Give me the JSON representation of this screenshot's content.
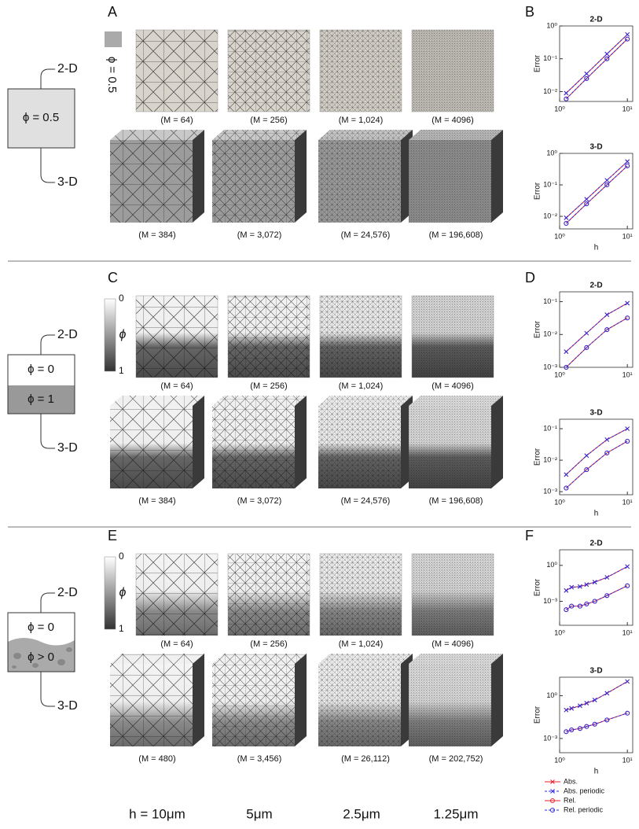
{
  "figure": {
    "rows": [
      {
        "letter": "A",
        "chart_letter": "B",
        "dim_2d": "2-D",
        "dim_3d": "3-D",
        "phase_labels": [
          "ϕ = 0.5"
        ],
        "colorbar_labels": [
          "ϕ = 0.5"
        ],
        "mesh_2d": [
          "(M = 64)",
          "(M = 256)",
          "(M = 1,024)",
          "(M = 4096)"
        ],
        "mesh_3d": [
          "(M = 384)",
          "(M = 3,072)",
          "(M = 24,576)",
          "(M = 196,608)"
        ]
      },
      {
        "letter": "C",
        "chart_letter": "D",
        "dim_2d": "2-D",
        "dim_3d": "3-D",
        "phase_labels": [
          "ϕ = 0",
          "ϕ = 1"
        ],
        "colorbar_labels": [
          "0",
          "ϕ",
          "1"
        ],
        "mesh_2d": [
          "(M = 64)",
          "(M = 256)",
          "(M = 1,024)",
          "(M = 4096)"
        ],
        "mesh_3d": [
          "(M = 384)",
          "(M = 3,072)",
          "(M = 24,576)",
          "(M = 196,608)"
        ]
      },
      {
        "letter": "E",
        "chart_letter": "F",
        "dim_2d": "2-D",
        "dim_3d": "3-D",
        "phase_labels": [
          "ϕ = 0",
          "ϕ > 0"
        ],
        "colorbar_labels": [
          "0",
          "ϕ",
          "1"
        ],
        "mesh_2d": [
          "(M = 64)",
          "(M = 256)",
          "(M = 1,024)",
          "(M = 4096)"
        ],
        "mesh_3d": [
          "(M = 480)",
          "(M = 3,456)",
          "(M = 26,112)",
          "(M = 202,752)"
        ]
      }
    ],
    "h_labels": [
      "h = 10μm",
      "5μm",
      "2.5μm",
      "1.25μm"
    ]
  },
  "chart_data": [
    {
      "type": "line",
      "title": "2-D",
      "ylabel": "Error",
      "log_x": true,
      "log_y": true,
      "x": [
        1.25,
        2.5,
        5,
        10
      ],
      "xlim": [
        1,
        12
      ],
      "xticks": [
        {
          "value": 1,
          "label": "10⁰"
        },
        {
          "value": 10,
          "label": "10¹"
        }
      ],
      "ylim": [
        0.005,
        1
      ],
      "yticks": [
        {
          "value": 0.01,
          "label": "10⁻²"
        },
        {
          "value": 0.1,
          "label": "10⁻¹"
        },
        {
          "value": 1,
          "label": "10⁰"
        }
      ],
      "series": [
        {
          "color": "#e8202a",
          "marker": "x",
          "values": [
            0.009,
            0.035,
            0.14,
            0.55
          ]
        },
        {
          "color": "#2a2ae0",
          "marker": "x",
          "values": [
            0.009,
            0.035,
            0.14,
            0.55
          ]
        },
        {
          "color": "#e8202a",
          "marker": "o",
          "values": [
            0.006,
            0.025,
            0.1,
            0.4
          ]
        },
        {
          "color": "#2a2ae0",
          "marker": "o",
          "values": [
            0.006,
            0.025,
            0.1,
            0.4
          ]
        }
      ]
    },
    {
      "type": "line",
      "title": "3-D",
      "ylabel": "Error",
      "xlabel": "h",
      "log_x": true,
      "log_y": true,
      "x": [
        1.25,
        2.5,
        5,
        10
      ],
      "xlim": [
        1,
        12
      ],
      "xticks": [
        {
          "value": 1,
          "label": "10⁰"
        },
        {
          "value": 10,
          "label": "10¹"
        }
      ],
      "ylim": [
        0.004,
        1
      ],
      "yticks": [
        {
          "value": 0.01,
          "label": "10⁻²"
        },
        {
          "value": 0.1,
          "label": "10⁻¹"
        },
        {
          "value": 1,
          "label": "10⁰"
        }
      ],
      "series": [
        {
          "color": "#e8202a",
          "marker": "x",
          "values": [
            0.009,
            0.035,
            0.14,
            0.55
          ]
        },
        {
          "color": "#2a2ae0",
          "marker": "x",
          "values": [
            0.009,
            0.035,
            0.14,
            0.55
          ]
        },
        {
          "color": "#e8202a",
          "marker": "o",
          "values": [
            0.006,
            0.025,
            0.1,
            0.4
          ]
        },
        {
          "color": "#2a2ae0",
          "marker": "o",
          "values": [
            0.006,
            0.025,
            0.1,
            0.4
          ]
        }
      ]
    },
    {
      "type": "line",
      "title": "2-D",
      "ylabel": "Error",
      "log_x": true,
      "log_y": true,
      "x": [
        1.25,
        2.5,
        5,
        10
      ],
      "xlim": [
        1,
        12
      ],
      "xticks": [
        {
          "value": 1,
          "label": "10⁰"
        },
        {
          "value": 10,
          "label": "10¹"
        }
      ],
      "ylim": [
        0.001,
        0.2
      ],
      "yticks": [
        {
          "value": 0.001,
          "label": "10⁻³"
        },
        {
          "value": 0.01,
          "label": "10⁻²"
        },
        {
          "value": 0.1,
          "label": "10⁻¹"
        }
      ],
      "series": [
        {
          "color": "#e8202a",
          "marker": "x",
          "values": [
            0.003,
            0.011,
            0.04,
            0.09
          ]
        },
        {
          "color": "#2a2ae0",
          "marker": "x",
          "values": [
            0.003,
            0.011,
            0.04,
            0.09
          ]
        },
        {
          "color": "#e8202a",
          "marker": "o",
          "values": [
            0.001,
            0.004,
            0.014,
            0.032
          ]
        },
        {
          "color": "#2a2ae0",
          "marker": "o",
          "values": [
            0.001,
            0.004,
            0.014,
            0.032
          ]
        }
      ]
    },
    {
      "type": "line",
      "title": "3-D",
      "ylabel": "Error",
      "xlabel": "h",
      "log_x": true,
      "log_y": true,
      "x": [
        1.25,
        2.5,
        5,
        10
      ],
      "xlim": [
        1,
        12
      ],
      "xticks": [
        {
          "value": 1,
          "label": "10⁰"
        },
        {
          "value": 10,
          "label": "10¹"
        }
      ],
      "ylim": [
        0.0008,
        0.2
      ],
      "yticks": [
        {
          "value": 0.001,
          "label": "10⁻³"
        },
        {
          "value": 0.01,
          "label": "10⁻²"
        },
        {
          "value": 0.1,
          "label": "10⁻¹"
        }
      ],
      "series": [
        {
          "color": "#e8202a",
          "marker": "x",
          "values": [
            0.0035,
            0.014,
            0.045,
            0.1
          ]
        },
        {
          "color": "#2a2ae0",
          "marker": "x",
          "values": [
            0.0035,
            0.014,
            0.045,
            0.1
          ]
        },
        {
          "color": "#e8202a",
          "marker": "o",
          "values": [
            0.0013,
            0.005,
            0.017,
            0.04
          ]
        },
        {
          "color": "#2a2ae0",
          "marker": "o",
          "values": [
            0.0013,
            0.005,
            0.017,
            0.04
          ]
        }
      ]
    },
    {
      "type": "line",
      "title": "2-D",
      "ylabel": "Error",
      "log_x": true,
      "log_y": true,
      "x": [
        1.25,
        1.5,
        2,
        2.5,
        3.3,
        5,
        10
      ],
      "xlim": [
        1,
        12
      ],
      "xticks": [
        {
          "value": 1,
          "label": "10⁰"
        },
        {
          "value": 10,
          "label": "10¹"
        }
      ],
      "ylim": [
        1e-05,
        20
      ],
      "yticks": [
        {
          "value": 0.001,
          "label": "10⁻³"
        },
        {
          "value": 1,
          "label": "10⁰"
        }
      ],
      "series": [
        {
          "color": "#e8202a",
          "marker": "x",
          "values": [
            0.008,
            0.015,
            0.017,
            0.025,
            0.04,
            0.1,
            0.8
          ]
        },
        {
          "color": "#2a2ae0",
          "marker": "x",
          "values": [
            0.008,
            0.015,
            0.017,
            0.025,
            0.04,
            0.1,
            0.8
          ]
        },
        {
          "color": "#e8202a",
          "marker": "o",
          "values": [
            0.0002,
            0.0004,
            0.0004,
            0.0006,
            0.001,
            0.003,
            0.02
          ]
        },
        {
          "color": "#2a2ae0",
          "marker": "o",
          "values": [
            0.0002,
            0.0004,
            0.0004,
            0.0006,
            0.001,
            0.003,
            0.02
          ]
        }
      ]
    },
    {
      "type": "line",
      "title": "3-D",
      "ylabel": "Error",
      "xlabel": "h",
      "log_x": true,
      "log_y": true,
      "x": [
        1.25,
        1.5,
        2,
        2.5,
        3.3,
        5,
        10
      ],
      "xlim": [
        1,
        12
      ],
      "xticks": [
        {
          "value": 1,
          "label": "10⁰"
        },
        {
          "value": 10,
          "label": "10¹"
        }
      ],
      "ylim": [
        0.0001,
        20
      ],
      "yticks": [
        {
          "value": 0.001,
          "label": "10⁻³"
        },
        {
          "value": 1,
          "label": "10⁰"
        }
      ],
      "series": [
        {
          "name": "Abs.",
          "color": "#e8202a",
          "marker": "x",
          "values": [
            0.1,
            0.13,
            0.2,
            0.3,
            0.5,
            1.5,
            10
          ]
        },
        {
          "name": "Abs. periodic",
          "color": "#2a2ae0",
          "marker": "x",
          "values": [
            0.1,
            0.13,
            0.2,
            0.3,
            0.5,
            1.5,
            10
          ]
        },
        {
          "name": "Rel.",
          "color": "#e8202a",
          "marker": "o",
          "values": [
            0.003,
            0.004,
            0.005,
            0.007,
            0.01,
            0.02,
            0.06
          ]
        },
        {
          "name": "Rel. periodic",
          "color": "#2a2ae0",
          "marker": "o",
          "values": [
            0.003,
            0.004,
            0.005,
            0.007,
            0.01,
            0.02,
            0.06
          ]
        }
      ]
    }
  ]
}
